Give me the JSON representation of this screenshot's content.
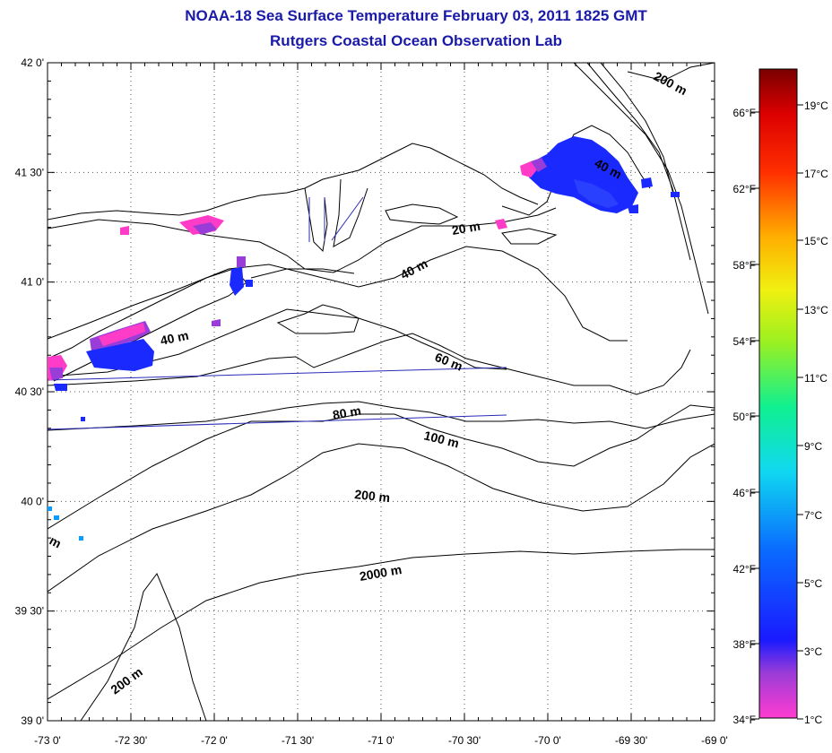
{
  "title": "NOAA-18 Sea Surface Temperature February 03, 2011 1825 GMT",
  "subtitle": "Rutgers Coastal Ocean Observation Lab",
  "lat_ticks": [
    "42 0'",
    "41 30'",
    "41 0'",
    "40 30'",
    "40 0'",
    "39 30'",
    "39 0'"
  ],
  "lon_ticks": [
    "-73 0'",
    "-72 30'",
    "-72 0'",
    "-71 30'",
    "-71 0'",
    "-70 30'",
    "-70 0'",
    "-69 30'",
    "-69 0'"
  ],
  "contour_labels": [
    "20 m",
    "40 m",
    "40 m",
    "60 m",
    "80 m",
    "100 m",
    "200 m",
    "200 m",
    "200 m",
    "2000 m",
    "40 m",
    "m"
  ],
  "colorbar": {
    "fahrenheit": [
      "66°F",
      "62°F",
      "58°F",
      "54°F",
      "50°F",
      "46°F",
      "42°F",
      "38°F",
      "34°F"
    ],
    "celsius": [
      "19°C",
      "17°C",
      "15°C",
      "13°C",
      "11°C",
      "9°C",
      "7°C",
      "5°C",
      "3°C",
      "1°C"
    ]
  },
  "colors": {
    "title": "#1a1aa8",
    "sst_cold_blue": "#1a2aff",
    "sst_magenta": "#ff3cc8",
    "sst_purple": "#9a3cd8"
  }
}
